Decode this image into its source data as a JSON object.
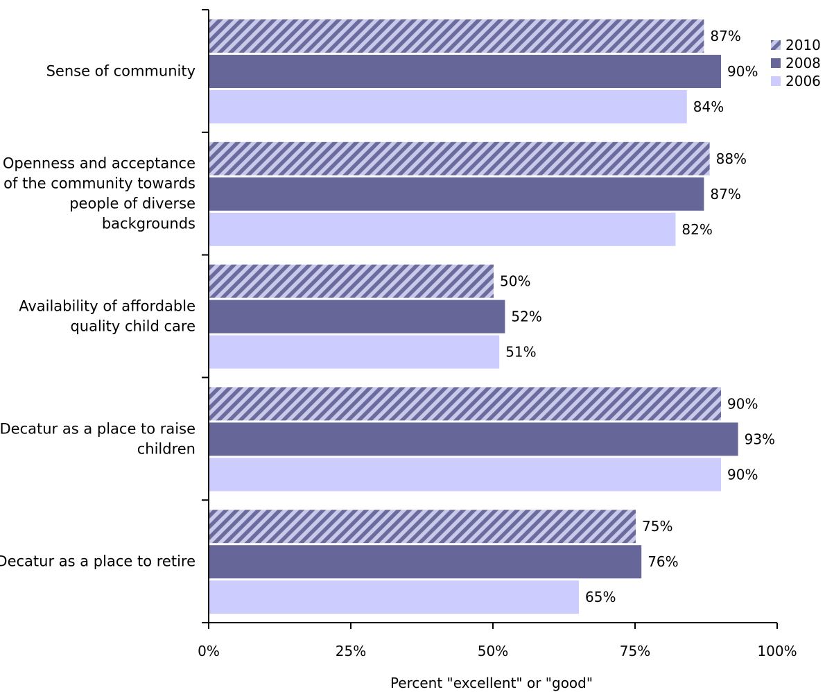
{
  "chart_data": {
    "type": "bar",
    "orientation": "horizontal",
    "categories": [
      [
        "Sense of community"
      ],
      [
        "Openness and acceptance",
        "of the community towards",
        "people of diverse",
        "backgrounds"
      ],
      [
        "Availability of affordable",
        "quality child care"
      ],
      [
        "Decatur as a place to raise",
        "children"
      ],
      [
        "Decatur as a place to retire"
      ]
    ],
    "series": [
      {
        "name": "2010",
        "values": [
          87,
          88,
          50,
          90,
          75
        ],
        "labels": [
          "87%",
          "88%",
          "50%",
          "90%",
          "75%"
        ],
        "color": "#6b6b9e",
        "pattern": "hatched"
      },
      {
        "name": "2008",
        "values": [
          90,
          87,
          52,
          93,
          76
        ],
        "labels": [
          "90%",
          "87%",
          "52%",
          "93%",
          "76%"
        ],
        "color": "#666699",
        "pattern": "solid"
      },
      {
        "name": "2006",
        "values": [
          84,
          82,
          51,
          90,
          65
        ],
        "labels": [
          "84%",
          "82%",
          "51%",
          "90%",
          "65%"
        ],
        "color": "#ccccff",
        "pattern": "solid"
      }
    ],
    "xlabel": "Percent \"excellent\" or \"good\"",
    "xlim": [
      0,
      100
    ],
    "xticks": [
      0,
      25,
      50,
      75,
      100
    ],
    "xtick_labels": [
      "0%",
      "25%",
      "50%",
      "75%",
      "100%"
    ],
    "grid": false,
    "legend_position": "top-right"
  }
}
